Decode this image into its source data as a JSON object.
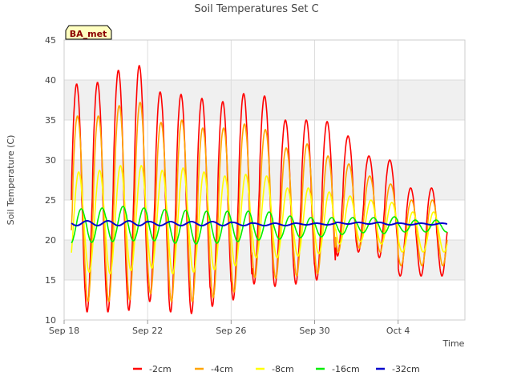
{
  "chart_data": {
    "type": "line",
    "title": "Soil Temperatures Set C",
    "xlabel": "Time",
    "ylabel": "Soil Temperature (C)",
    "ylim": [
      10,
      45
    ],
    "xlim_days": "Sep 18 to Oct 6",
    "y_ticks": [
      "10",
      "15",
      "20",
      "25",
      "30",
      "35",
      "40",
      "45"
    ],
    "x_ticks": [
      {
        "label": "Sep 18",
        "day": 0
      },
      {
        "label": "Sep 22",
        "day": 4
      },
      {
        "label": "Sep 26",
        "day": 8
      },
      {
        "label": "Sep 30",
        "day": 12
      },
      {
        "label": "Oct 4",
        "day": 16
      }
    ],
    "grid": true,
    "background_bands": true,
    "legend_position": "bottom",
    "annotation": "BA_met",
    "series": [
      {
        "name": "-2cm",
        "color": "#ff0000",
        "daily_max": [
          39.5,
          39.7,
          41.2,
          41.8,
          38.5,
          38.2,
          37.7,
          37.3,
          38.3,
          38.0,
          35.0,
          35.0,
          34.8,
          33.0,
          30.5,
          30.0,
          26.5
        ],
        "daily_min": [
          10.5,
          11.0,
          11.0,
          11.2,
          12.3,
          11.0,
          10.8,
          11.7,
          12.5,
          14.5,
          14.2,
          14.5,
          15.0,
          18.0,
          18.5,
          17.8,
          15.5
        ]
      },
      {
        "name": "-4cm",
        "color": "#ffa500",
        "daily_max": [
          35.5,
          35.5,
          36.8,
          37.2,
          34.7,
          35.0,
          34.0,
          34.0,
          34.5,
          33.8,
          31.5,
          32.0,
          30.5,
          29.5,
          28.0,
          27.0,
          25.0
        ],
        "daily_min": [
          12.0,
          12.3,
          12.3,
          12.5,
          13.3,
          12.3,
          12.3,
          12.8,
          13.5,
          15.3,
          15.2,
          15.5,
          15.8,
          18.5,
          19.0,
          18.5,
          16.8
        ]
      },
      {
        "name": "-8cm",
        "color": "#ffff00",
        "daily_max": [
          28.5,
          28.7,
          29.3,
          29.3,
          28.7,
          29.0,
          28.5,
          28.0,
          28.2,
          28.0,
          26.5,
          26.5,
          26.0,
          25.5,
          25.0,
          24.7,
          23.5
        ],
        "daily_min": [
          15.8,
          16.0,
          15.8,
          16.2,
          16.5,
          15.8,
          16.0,
          16.3,
          16.8,
          17.8,
          17.8,
          18.0,
          18.3,
          19.5,
          19.8,
          19.5,
          18.5
        ]
      },
      {
        "name": "-16cm",
        "color": "#00ee00",
        "daily_max": [
          23.9,
          24.0,
          24.2,
          24.0,
          23.8,
          23.7,
          23.6,
          23.6,
          23.6,
          23.5,
          23.0,
          22.8,
          22.8,
          22.8,
          22.8,
          22.9,
          22.5
        ],
        "daily_min": [
          19.6,
          19.7,
          19.8,
          19.9,
          19.9,
          19.6,
          19.5,
          19.6,
          19.8,
          20.0,
          20.1,
          20.3,
          20.4,
          20.7,
          20.9,
          20.8,
          21.0
        ]
      },
      {
        "name": "-32cm",
        "color": "#0000cc",
        "daily_max": [
          22.4,
          22.4,
          22.4,
          22.4,
          22.3,
          22.3,
          22.3,
          22.3,
          22.2,
          22.1,
          22.1,
          22.1,
          22.1,
          22.2,
          22.2,
          22.2,
          22.1
        ],
        "daily_min": [
          21.8,
          21.8,
          21.8,
          21.8,
          21.8,
          21.8,
          21.8,
          21.8,
          21.8,
          21.8,
          21.8,
          21.9,
          21.9,
          22.0,
          22.0,
          21.9,
          21.9
        ]
      }
    ]
  }
}
